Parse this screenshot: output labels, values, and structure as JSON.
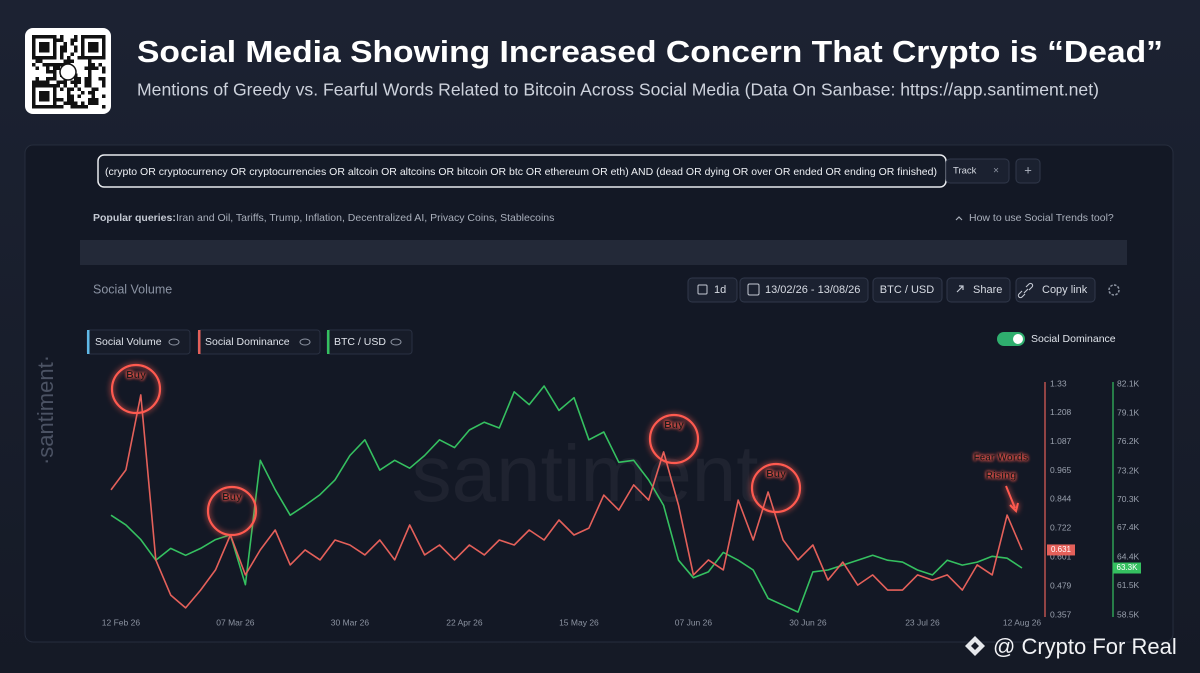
{
  "header": {
    "title": "Social Media Showing Increased Concern That Crypto is “Dead”",
    "subtitle": "Mentions of Greedy vs. Fearful Words Related to Bitcoin Across Social Media (Data On Sanbase: https://app.santiment.net)"
  },
  "query_bar": {
    "query": "(crypto OR cryptocurrency OR cryptocurrencies OR altcoin OR altcoins OR bitcoin OR btc OR ethereum OR eth) AND (dead OR dying OR over OR ended OR ending OR finished)",
    "track": "Track",
    "close": "×",
    "add": "+"
  },
  "popular_queries": {
    "label": "Popular queries:",
    "items": "Iran and Oil, Tariffs, Trump, Inflation, Decentralized AI, Privacy Coins, Stablecoins",
    "help": "How to use Social Trends tool?"
  },
  "toolbar": {
    "title": "Social Volume",
    "interval": "1d",
    "date_range": "13/02/26 - 13/08/26",
    "pair": "BTC / USD",
    "share": "Share",
    "copy_link": "Copy link"
  },
  "chart_data": {
    "type": "line",
    "inactive_metric": {
      "name": "Social Volume",
      "color": "#5fb8e6"
    },
    "x": [
      "2026-02-10",
      "2026-02-13",
      "2026-02-16",
      "2026-02-19",
      "2026-02-22",
      "2026-02-25",
      "2026-02-28",
      "2026-03-03",
      "2026-03-06",
      "2026-03-09",
      "2026-03-12",
      "2026-03-15",
      "2026-03-18",
      "2026-03-21",
      "2026-03-24",
      "2026-03-27",
      "2026-03-30",
      "2026-04-02",
      "2026-04-05",
      "2026-04-08",
      "2026-04-11",
      "2026-04-14",
      "2026-04-17",
      "2026-04-20",
      "2026-04-23",
      "2026-04-26",
      "2026-04-29",
      "2026-05-02",
      "2026-05-05",
      "2026-05-08",
      "2026-05-11",
      "2026-05-14",
      "2026-05-17",
      "2026-05-20",
      "2026-05-23",
      "2026-05-26",
      "2026-05-29",
      "2026-06-01",
      "2026-06-04",
      "2026-06-07",
      "2026-06-10",
      "2026-06-13",
      "2026-06-16",
      "2026-06-19",
      "2026-06-22",
      "2026-06-25",
      "2026-06-28",
      "2026-07-01",
      "2026-07-04",
      "2026-07-07",
      "2026-07-10",
      "2026-07-13",
      "2026-07-16",
      "2026-07-19",
      "2026-07-22",
      "2026-07-25",
      "2026-07-28",
      "2026-07-31",
      "2026-08-03",
      "2026-08-06",
      "2026-08-09",
      "2026-08-12"
    ],
    "xlim": [
      "2026-02-08",
      "2026-08-13"
    ],
    "xticks": [
      {
        "value": "2026-02-12",
        "label": "12 Feb 26"
      },
      {
        "value": "2026-03-07",
        "label": "07 Mar 26"
      },
      {
        "value": "2026-03-30",
        "label": "30 Mar 26"
      },
      {
        "value": "2026-04-22",
        "label": "22 Apr 26"
      },
      {
        "value": "2026-05-15",
        "label": "15 May 26"
      },
      {
        "value": "2026-06-07",
        "label": "07 Jun 26"
      },
      {
        "value": "2026-06-30",
        "label": "30 Jun 26"
      },
      {
        "value": "2026-07-23",
        "label": "23 Jul 26"
      },
      {
        "value": "2026-08-12",
        "label": "12 Aug 26"
      }
    ],
    "ylim": [
      0.357,
      1.33
    ],
    "yticks": [
      0.357,
      0.479,
      0.601,
      0.722,
      0.844,
      0.965,
      1.087,
      1.208,
      1.33
    ],
    "y2lim": [
      58500,
      82100
    ],
    "y2ticks": [
      {
        "value": 58500,
        "label": "58.5K"
      },
      {
        "value": 61500,
        "label": "61.5K"
      },
      {
        "value": 64400,
        "label": "64.4K"
      },
      {
        "value": 67400,
        "label": "67.4K"
      },
      {
        "value": 70300,
        "label": "70.3K"
      },
      {
        "value": 73200,
        "label": "73.2K"
      },
      {
        "value": 76200,
        "label": "76.2K"
      },
      {
        "value": 79100,
        "label": "79.1K"
      },
      {
        "value": 82100,
        "label": "82.1K"
      }
    ],
    "grid": false,
    "series": [
      {
        "name": "Social Dominance",
        "color": "#e4605a",
        "values": [
          0.884,
          0.968,
          1.284,
          0.589,
          0.441,
          0.387,
          0.462,
          0.547,
          0.694,
          0.526,
          0.631,
          0.715,
          0.568,
          0.631,
          0.589,
          0.673,
          0.652,
          0.61,
          0.673,
          0.589,
          0.736,
          0.61,
          0.652,
          0.589,
          0.652,
          0.61,
          0.673,
          0.652,
          0.715,
          0.673,
          0.757,
          0.694,
          0.723,
          0.862,
          0.799,
          0.905,
          0.841,
          1.044,
          0.82,
          0.526,
          0.589,
          0.547,
          0.841,
          0.673,
          0.875,
          0.673,
          0.589,
          0.652,
          0.504,
          0.58,
          0.483,
          0.526,
          0.462,
          0.462,
          0.526,
          0.504,
          0.526,
          0.462,
          0.568,
          0.526,
          0.778,
          0.631
        ]
      },
      {
        "name": "BTC / USD",
        "color": "#35c060",
        "axis": "y2",
        "values": [
          68700,
          67700,
          66200,
          64100,
          65300,
          64600,
          65300,
          66200,
          66700,
          61600,
          74300,
          71300,
          68700,
          69700,
          70800,
          72300,
          74800,
          76400,
          73300,
          74300,
          73500,
          74800,
          76400,
          75600,
          77400,
          78200,
          77600,
          81300,
          80000,
          81900,
          79400,
          80700,
          76400,
          77200,
          74100,
          74300,
          72300,
          69700,
          64100,
          62300,
          62900,
          64900,
          64100,
          63100,
          60200,
          59500,
          58800,
          62900,
          63100,
          63600,
          64100,
          64600,
          64100,
          63900,
          63100,
          62600,
          64100,
          63600,
          63900,
          64500,
          64300,
          63300
        ],
        "value_labels": [
          null,
          null,
          null,
          null,
          null,
          null,
          null,
          null,
          null,
          null,
          null,
          null,
          null,
          null,
          null,
          null,
          null,
          null,
          null,
          null,
          null,
          null,
          null,
          null,
          null,
          null,
          null,
          null,
          null,
          null,
          null,
          null,
          null,
          null,
          null,
          null,
          null,
          null,
          null,
          null,
          null,
          null,
          null,
          null,
          null,
          null,
          null,
          null,
          null,
          null,
          null,
          null,
          null,
          null,
          null,
          null,
          null,
          null,
          null,
          null,
          null,
          "63.3K"
        ]
      }
    ],
    "annotations": [
      "Buy",
      "Buy",
      "Buy",
      "Buy"
    ],
    "callout": [
      "Fear Words",
      "Rising"
    ]
  },
  "watermark": "santiment",
  "side_logo": "·santiment·",
  "credit": "@ Crypto For Real"
}
